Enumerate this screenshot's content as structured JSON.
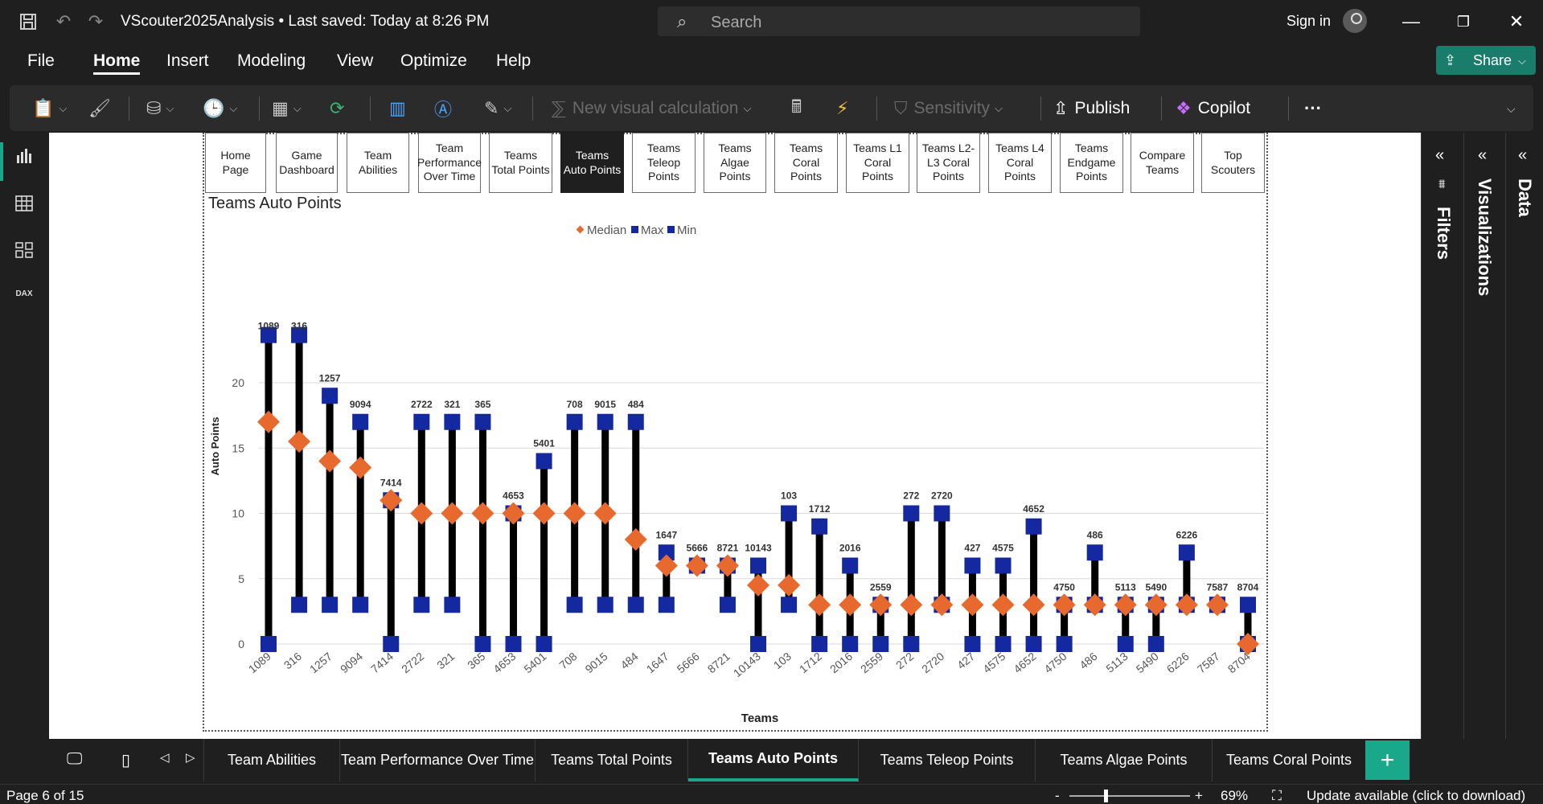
{
  "titlebar": {
    "title": "VScouter2025Analysis • Last saved: Today at 8:26 PM",
    "search_placeholder": "Search",
    "signin": "Sign in"
  },
  "menu": {
    "items": [
      "File",
      "Home",
      "Insert",
      "Modeling",
      "View",
      "Optimize",
      "Help"
    ],
    "active": "Home",
    "share": "Share"
  },
  "ribbon": {
    "new_visual_calc": "New visual calculation",
    "sensitivity": "Sensitivity",
    "publish": "Publish",
    "copilot": "Copilot",
    "more": "···"
  },
  "nav_buttons": [
    "Home Page",
    "Game Dashboard",
    "Team Abilities",
    "Team Performance Over Time",
    "Teams Total Points",
    "Teams Auto Points",
    "Teams Teleop Points",
    "Teams Algae Points",
    "Teams Coral Points",
    "Teams L1 Coral Points",
    "Teams L2-L3 Coral Points",
    "Teams L4 Coral Points",
    "Teams Endgame Points",
    "Compare Teams",
    "Top Scouters"
  ],
  "selected_nav": "Teams Auto Points",
  "page_title": "Teams Auto Points",
  "panes": {
    "filters": "Filters",
    "visualizations": "Visualizations",
    "data": "Data"
  },
  "tabs": [
    "Team Abilities",
    "Team Performance Over Time",
    "Teams Total Points",
    "Teams Auto Points",
    "Teams Teleop Points",
    "Teams Algae Points",
    "Teams Coral Points"
  ],
  "active_tab": "Teams Auto Points",
  "add_tab": "+",
  "status": {
    "page": "Page 6 of 15",
    "zoom_minus": "-",
    "zoom_plus": "+",
    "zoom_level": "69%",
    "update": "Update available (click to download)"
  },
  "colors": {
    "median": "#e8692e",
    "max": "#1428a0",
    "min": "#1428a0",
    "accent": "#1aa88a",
    "stem": "#000000"
  },
  "chart_data": {
    "type": "scatter",
    "xlabel": "Teams",
    "ylabel": "Auto Points",
    "ylim": [
      0,
      24
    ],
    "yticks": [
      0,
      5,
      10,
      15,
      20
    ],
    "legend": [
      "Median",
      "Max",
      "Min"
    ],
    "legend_position": "top-center",
    "grid": true,
    "categories": [
      "1089",
      "316",
      "1257",
      "9094",
      "7414",
      "2722",
      "321",
      "365",
      "4653",
      "5401",
      "708",
      "9015",
      "484",
      "1647",
      "5666",
      "8721",
      "10143",
      "103",
      "1712",
      "2016",
      "2559",
      "272",
      "2720",
      "427",
      "4575",
      "4652",
      "4750",
      "486",
      "5113",
      "5490",
      "6226",
      "7587",
      "8704"
    ],
    "median": [
      17,
      15.5,
      14,
      13.5,
      11,
      10,
      10,
      10,
      10,
      10,
      10,
      10,
      8,
      6,
      6,
      6,
      4.5,
      4.5,
      3,
      3,
      3,
      3,
      3,
      3,
      3,
      3,
      3,
      3,
      3,
      3,
      3,
      3,
      0
    ],
    "max": [
      24,
      24,
      19,
      17,
      11,
      17,
      17,
      17,
      10,
      14,
      17,
      17,
      17,
      7,
      6,
      6,
      6,
      10,
      9,
      6,
      3,
      10,
      10,
      6,
      6,
      9,
      3,
      7,
      3,
      3,
      7,
      3,
      3
    ],
    "min": [
      0,
      3,
      3,
      3,
      0,
      3,
      3,
      0,
      0,
      0,
      3,
      3,
      3,
      3,
      6,
      3,
      0,
      3,
      0,
      0,
      0,
      0,
      3,
      0,
      0,
      0,
      0,
      3,
      0,
      0,
      3,
      3,
      0
    ]
  }
}
